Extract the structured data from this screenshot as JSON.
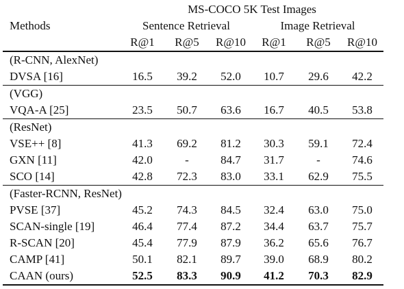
{
  "table": {
    "dataset_header": "MS-COCO 5K Test Images",
    "methods_header": "Methods",
    "sentence_header": "Sentence Retrieval",
    "image_header": "Image Retrieval",
    "metrics": [
      "R@1",
      "R@5",
      "R@10",
      "R@1",
      "R@5",
      "R@10"
    ],
    "groups": [
      {
        "label": "(R-CNN, AlexNet)",
        "rows": [
          {
            "method": "DVSA [16]",
            "values": [
              "16.5",
              "39.2",
              "52.0",
              "10.7",
              "29.6",
              "42.2"
            ],
            "bold": false
          }
        ]
      },
      {
        "label": "(VGG)",
        "rows": [
          {
            "method": "VQA-A [25]",
            "values": [
              "23.5",
              "50.7",
              "63.6",
              "16.7",
              "40.5",
              "53.8"
            ],
            "bold": false
          }
        ]
      },
      {
        "label": "(ResNet)",
        "rows": [
          {
            "method": "VSE++ [8]",
            "values": [
              "41.3",
              "69.2",
              "81.2",
              "30.3",
              "59.1",
              "72.4"
            ],
            "bold": false
          },
          {
            "method": "GXN [11]",
            "values": [
              "42.0",
              "-",
              "84.7",
              "31.7",
              "-",
              "74.6"
            ],
            "bold": false
          },
          {
            "method": "SCO [14]",
            "values": [
              "42.8",
              "72.3",
              "83.0",
              "33.1",
              "62.9",
              "75.5"
            ],
            "bold": false
          }
        ]
      },
      {
        "label": "(Faster-RCNN, ResNet)",
        "rows": [
          {
            "method": "PVSE [37]",
            "values": [
              "45.2",
              "74.3",
              "84.5",
              "32.4",
              "63.0",
              "75.0"
            ],
            "bold": false
          },
          {
            "method": "SCAN-single [19]",
            "values": [
              "46.4",
              "77.4",
              "87.2",
              "34.4",
              "63.7",
              "75.7"
            ],
            "bold": false
          },
          {
            "method": "R-SCAN [20]",
            "values": [
              "45.4",
              "77.9",
              "87.9",
              "36.2",
              "65.6",
              "76.7"
            ],
            "bold": false
          },
          {
            "method": "CAMP [41]",
            "values": [
              "50.1",
              "82.1",
              "89.7",
              "39.0",
              "68.9",
              "80.2"
            ],
            "bold": false
          },
          {
            "method": "CAAN (ours)",
            "values": [
              "52.5",
              "83.3",
              "90.9",
              "41.2",
              "70.3",
              "82.9"
            ],
            "bold": true
          }
        ]
      }
    ]
  }
}
